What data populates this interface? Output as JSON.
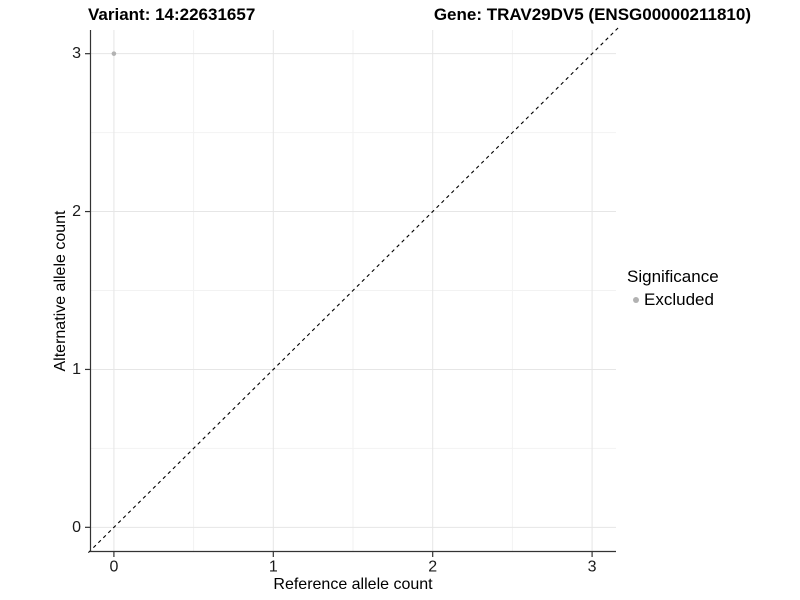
{
  "header": {
    "variant_title": "Variant: 14:22631657",
    "gene_title": "Gene: TRAV29DV5 (ENSG00000211810)"
  },
  "chart_data": {
    "type": "scatter",
    "xlabel": "Reference allele count",
    "ylabel": "Alternative allele count",
    "xlim": [
      -0.15,
      3.15
    ],
    "ylim": [
      -0.15,
      3.15
    ],
    "x_ticks": [
      0,
      1,
      2,
      3
    ],
    "y_ticks": [
      0,
      1,
      2,
      3
    ],
    "x_minor_ticks": [
      0.5,
      1.5,
      2.5
    ],
    "y_minor_ticks": [
      0.5,
      1.5,
      2.5
    ],
    "grid": "on",
    "legend_position": "right",
    "reference_line": {
      "style": "dashed",
      "color": "#000000",
      "x1": -0.16,
      "y1": -0.16,
      "x2": 3.17,
      "y2": 3.17
    },
    "series": [
      {
        "name": "Excluded",
        "color": "#b2b2b2",
        "points": [
          {
            "x": 0,
            "y": 3
          }
        ],
        "point_radius": 2.3
      }
    ],
    "legend": {
      "title": "Significance",
      "entries": [
        {
          "label": "Excluded",
          "color": "#b2b2b2"
        }
      ]
    }
  },
  "colors": {
    "grid_major": "#e6e6e6",
    "grid_minor": "#f2f2f2",
    "axis_line": "#333333",
    "tick_text": "#1a1a1a"
  }
}
